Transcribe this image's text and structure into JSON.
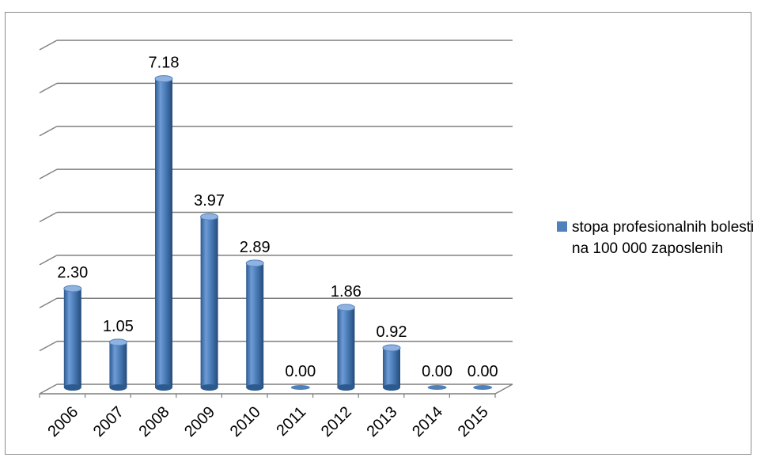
{
  "chart_data": {
    "type": "bar",
    "style": "3d-cylinder",
    "categories": [
      "2006",
      "2007",
      "2008",
      "2009",
      "2010",
      "2011",
      "2012",
      "2013",
      "2014",
      "2015"
    ],
    "series": [
      {
        "name": "stopa profesionalnih bolesti na 100 000 zaposlenih",
        "values": [
          2.3,
          1.05,
          7.18,
          3.97,
          2.89,
          0.0,
          1.86,
          0.92,
          0.0,
          0.0
        ],
        "data_labels": [
          "2.30",
          "1.05",
          "7.18",
          "3.97",
          "2.89",
          "0.00",
          "1.86",
          "0.92",
          "0.00",
          "0.00"
        ],
        "color": "#4f81bd"
      }
    ],
    "ylim": [
      0,
      8
    ],
    "y_grid_step": 1,
    "grid": true,
    "y_tick_labels_visible": false,
    "x_tick_rotation": -45,
    "legend_position": "right",
    "colors": {
      "bar": "#4f81bd",
      "bar_dark": "#2c5a8f",
      "bar_light": "#8fb2e0",
      "grid": "#7f7f7f"
    }
  }
}
